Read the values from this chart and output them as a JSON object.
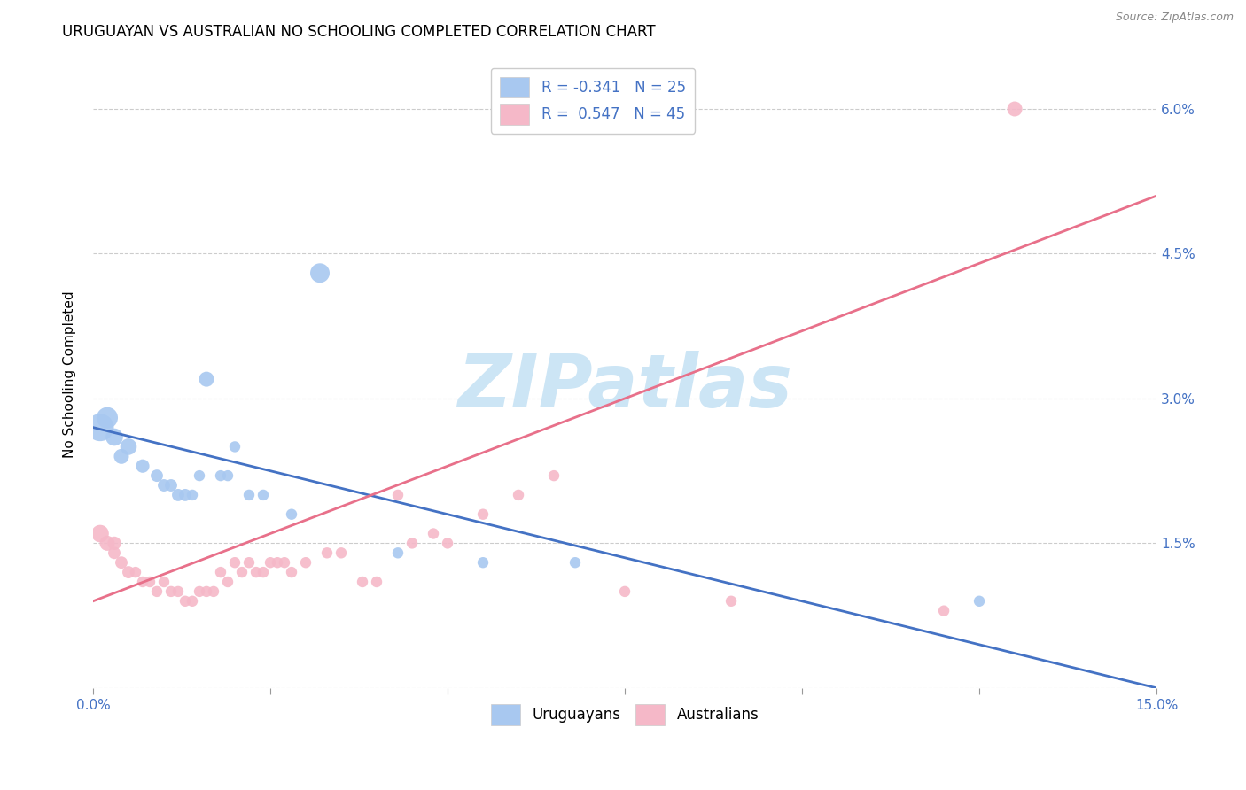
{
  "title": "URUGUAYAN VS AUSTRALIAN NO SCHOOLING COMPLETED CORRELATION CHART",
  "source": "Source: ZipAtlas.com",
  "ylabel": "No Schooling Completed",
  "xmin": 0.0,
  "xmax": 0.15,
  "ymin": 0.0,
  "ymax": 0.065,
  "yticks": [
    0.0,
    0.015,
    0.03,
    0.045,
    0.06
  ],
  "ytick_labels": [
    "",
    "1.5%",
    "3.0%",
    "4.5%",
    "6.0%"
  ],
  "xticks": [
    0.0,
    0.025,
    0.05,
    0.075,
    0.1,
    0.125,
    0.15
  ],
  "xtick_labels": [
    "0.0%",
    "",
    "",
    "",
    "",
    "",
    "15.0%"
  ],
  "legend_entries": [
    {
      "label": "R = -0.341   N = 25",
      "color": "#a8c8f0"
    },
    {
      "label": "R =  0.547   N = 45",
      "color": "#f5b8c8"
    }
  ],
  "uruguayan_x": [
    0.001,
    0.002,
    0.003,
    0.004,
    0.005,
    0.007,
    0.009,
    0.01,
    0.011,
    0.012,
    0.013,
    0.014,
    0.015,
    0.016,
    0.018,
    0.019,
    0.02,
    0.022,
    0.024,
    0.028,
    0.032,
    0.043,
    0.055,
    0.068,
    0.125
  ],
  "uruguayan_y": [
    0.027,
    0.028,
    0.026,
    0.024,
    0.025,
    0.023,
    0.022,
    0.021,
    0.021,
    0.02,
    0.02,
    0.02,
    0.022,
    0.032,
    0.022,
    0.022,
    0.025,
    0.02,
    0.02,
    0.018,
    0.043,
    0.014,
    0.013,
    0.013,
    0.009
  ],
  "uruguayan_sizes": [
    500,
    300,
    200,
    150,
    180,
    120,
    100,
    100,
    100,
    100,
    100,
    80,
    80,
    150,
    80,
    80,
    80,
    80,
    80,
    80,
    250,
    80,
    80,
    80,
    80
  ],
  "australian_x": [
    0.001,
    0.002,
    0.003,
    0.003,
    0.004,
    0.005,
    0.006,
    0.007,
    0.008,
    0.009,
    0.01,
    0.011,
    0.012,
    0.013,
    0.014,
    0.015,
    0.016,
    0.017,
    0.018,
    0.019,
    0.02,
    0.021,
    0.022,
    0.023,
    0.024,
    0.025,
    0.026,
    0.027,
    0.028,
    0.03,
    0.033,
    0.035,
    0.038,
    0.04,
    0.043,
    0.045,
    0.048,
    0.05,
    0.055,
    0.06,
    0.065,
    0.075,
    0.09,
    0.12,
    0.13
  ],
  "australian_y": [
    0.016,
    0.015,
    0.015,
    0.014,
    0.013,
    0.012,
    0.012,
    0.011,
    0.011,
    0.01,
    0.011,
    0.01,
    0.01,
    0.009,
    0.009,
    0.01,
    0.01,
    0.01,
    0.012,
    0.011,
    0.013,
    0.012,
    0.013,
    0.012,
    0.012,
    0.013,
    0.013,
    0.013,
    0.012,
    0.013,
    0.014,
    0.014,
    0.011,
    0.011,
    0.02,
    0.015,
    0.016,
    0.015,
    0.018,
    0.02,
    0.022,
    0.01,
    0.009,
    0.008,
    0.06
  ],
  "australian_sizes": [
    200,
    150,
    120,
    100,
    100,
    100,
    80,
    80,
    80,
    80,
    80,
    80,
    80,
    80,
    80,
    80,
    80,
    80,
    80,
    80,
    80,
    80,
    80,
    80,
    80,
    80,
    80,
    80,
    80,
    80,
    80,
    80,
    80,
    80,
    80,
    80,
    80,
    80,
    80,
    80,
    80,
    80,
    80,
    80,
    150
  ],
  "uruguayan_color": "#a8c8f0",
  "australian_color": "#f5b8c8",
  "trendline_uruguayan_color": "#4472C4",
  "trendline_australian_color": "#e8708a",
  "watermark_text": "ZIPatlas",
  "watermark_color": "#cce5f5",
  "background_color": "#FFFFFF",
  "grid_color": "#CCCCCC",
  "axis_color": "#4472C4",
  "title_fontsize": 12,
  "axis_label_fontsize": 11,
  "tick_fontsize": 11,
  "trendline_uru_x0": 0.0,
  "trendline_uru_y0": 0.027,
  "trendline_uru_x1": 0.15,
  "trendline_uru_y1": 0.0,
  "trendline_aus_x0": 0.0,
  "trendline_aus_y0": 0.009,
  "trendline_aus_x1": 0.15,
  "trendline_aus_y1": 0.051
}
